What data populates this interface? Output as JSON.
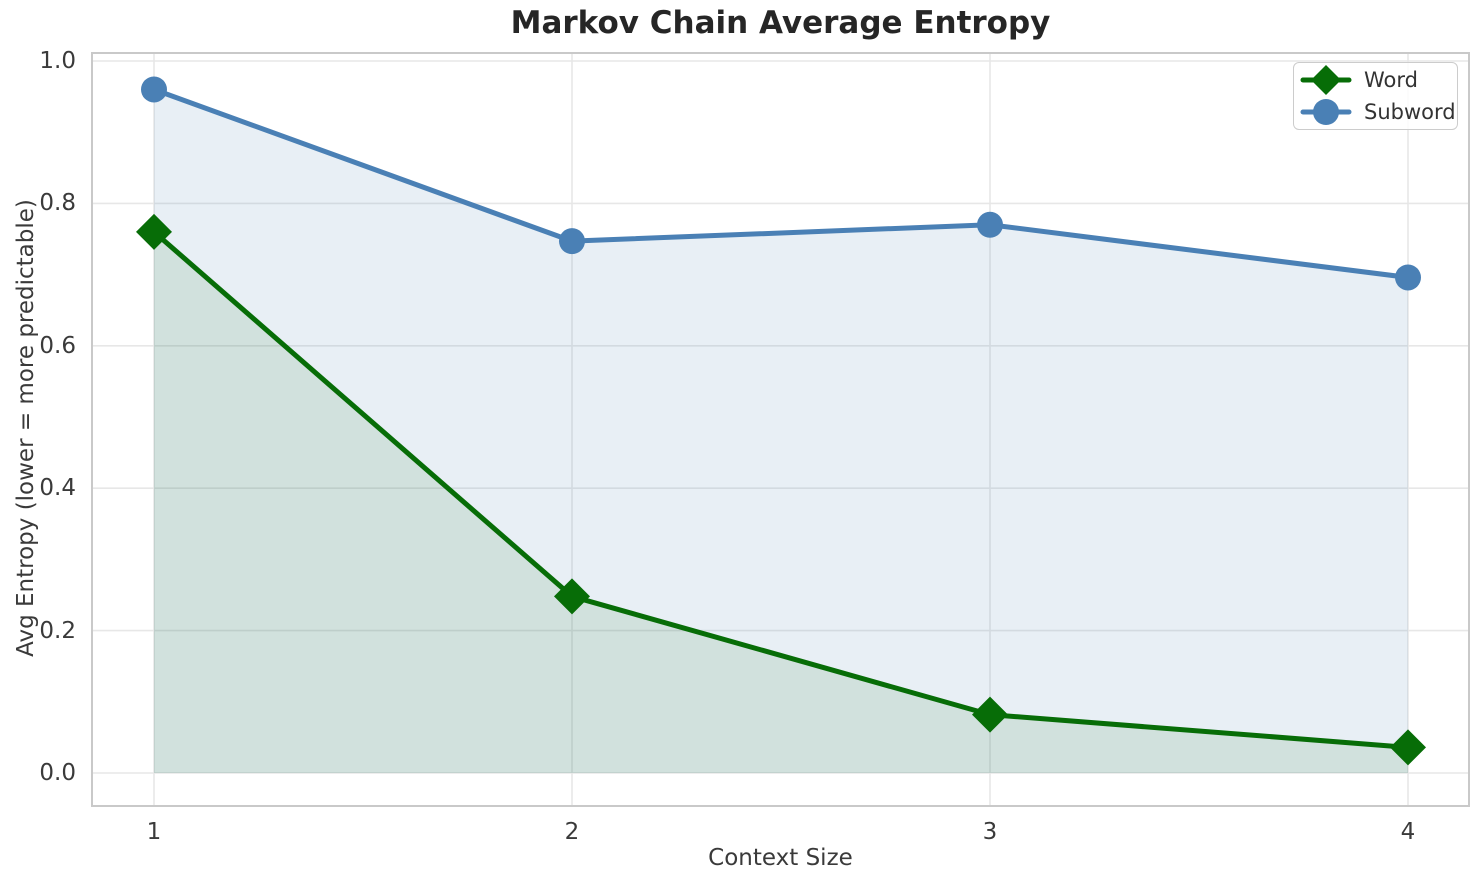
{
  "chart_data": {
    "type": "line",
    "title": "Markov Chain Average Entropy",
    "xlabel": "Context Size",
    "ylabel": "Avg Entropy (lower = more predictable)",
    "x": [
      1,
      2,
      3,
      4
    ],
    "series": [
      {
        "name": "Word",
        "color": "#076d07",
        "marker": "diamond",
        "area_fill": true,
        "fill_opacity": 0.1,
        "values": [
          0.76,
          0.248,
          0.082,
          0.036
        ]
      },
      {
        "name": "Subword",
        "color": "#4a80b5",
        "marker": "circle",
        "area_fill": true,
        "fill_opacity": 0.13,
        "values": [
          0.96,
          0.747,
          0.77,
          0.696
        ]
      }
    ],
    "xticks": {
      "values": [
        1,
        2,
        3,
        4
      ],
      "labels": [
        "1",
        "2",
        "3",
        "4"
      ]
    },
    "yticks": {
      "values": [
        0,
        0.2,
        0.4,
        0.6,
        0.8,
        1.0
      ],
      "labels": [
        "0.0",
        "0.2",
        "0.4",
        "0.6",
        "0.8",
        "1.0"
      ]
    },
    "xlim": [
      0.85,
      4.15
    ],
    "ylim": [
      -0.05,
      1.01
    ],
    "grid": true,
    "legend": {
      "position": "upper right",
      "entries": [
        "Word",
        "Subword"
      ]
    }
  },
  "colors": {
    "background": "#ffffff",
    "grid": "#e7e7e7",
    "spine": "#c9c9c9",
    "title_text": "#262626",
    "tick_text": "#3a3a3a",
    "word": "#076d07",
    "subword": "#4a80b5"
  }
}
